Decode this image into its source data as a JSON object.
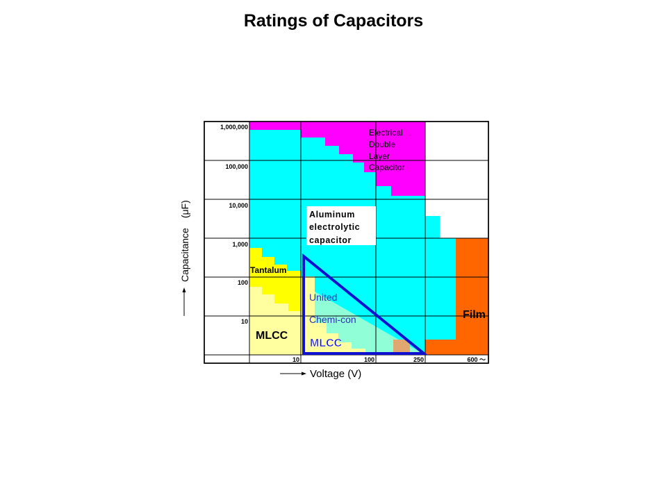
{
  "title": "Ratings of Capacitors",
  "y_axis": {
    "label": "Capacitance　(μF)",
    "ticks": [
      "1,000,000",
      "100,000",
      "10,000",
      "1,000",
      "100",
      "10"
    ]
  },
  "x_axis": {
    "label": "Voltage (V)",
    "ticks": [
      "10",
      "100",
      "250",
      "600 ～"
    ]
  },
  "regions": {
    "edlc": {
      "lines": [
        "Electrical",
        "Double",
        "Layer",
        "Capacitor"
      ],
      "color": "#ff00ff"
    },
    "aluminum": {
      "lines": [
        "Aluminum",
        "electrolytic",
        "capacitor"
      ],
      "color": "#00ffff"
    },
    "tantalum": {
      "label": "Tantalum",
      "color": "#ffff00"
    },
    "mlcc": {
      "label": "MLCC",
      "color": "#ffffa0"
    },
    "united": {
      "line1": "United",
      "line2": "Chemi-con",
      "line3": "MLCC",
      "color": "#1010d0"
    },
    "film": {
      "label": "Film",
      "color": "#ff6600"
    }
  }
}
